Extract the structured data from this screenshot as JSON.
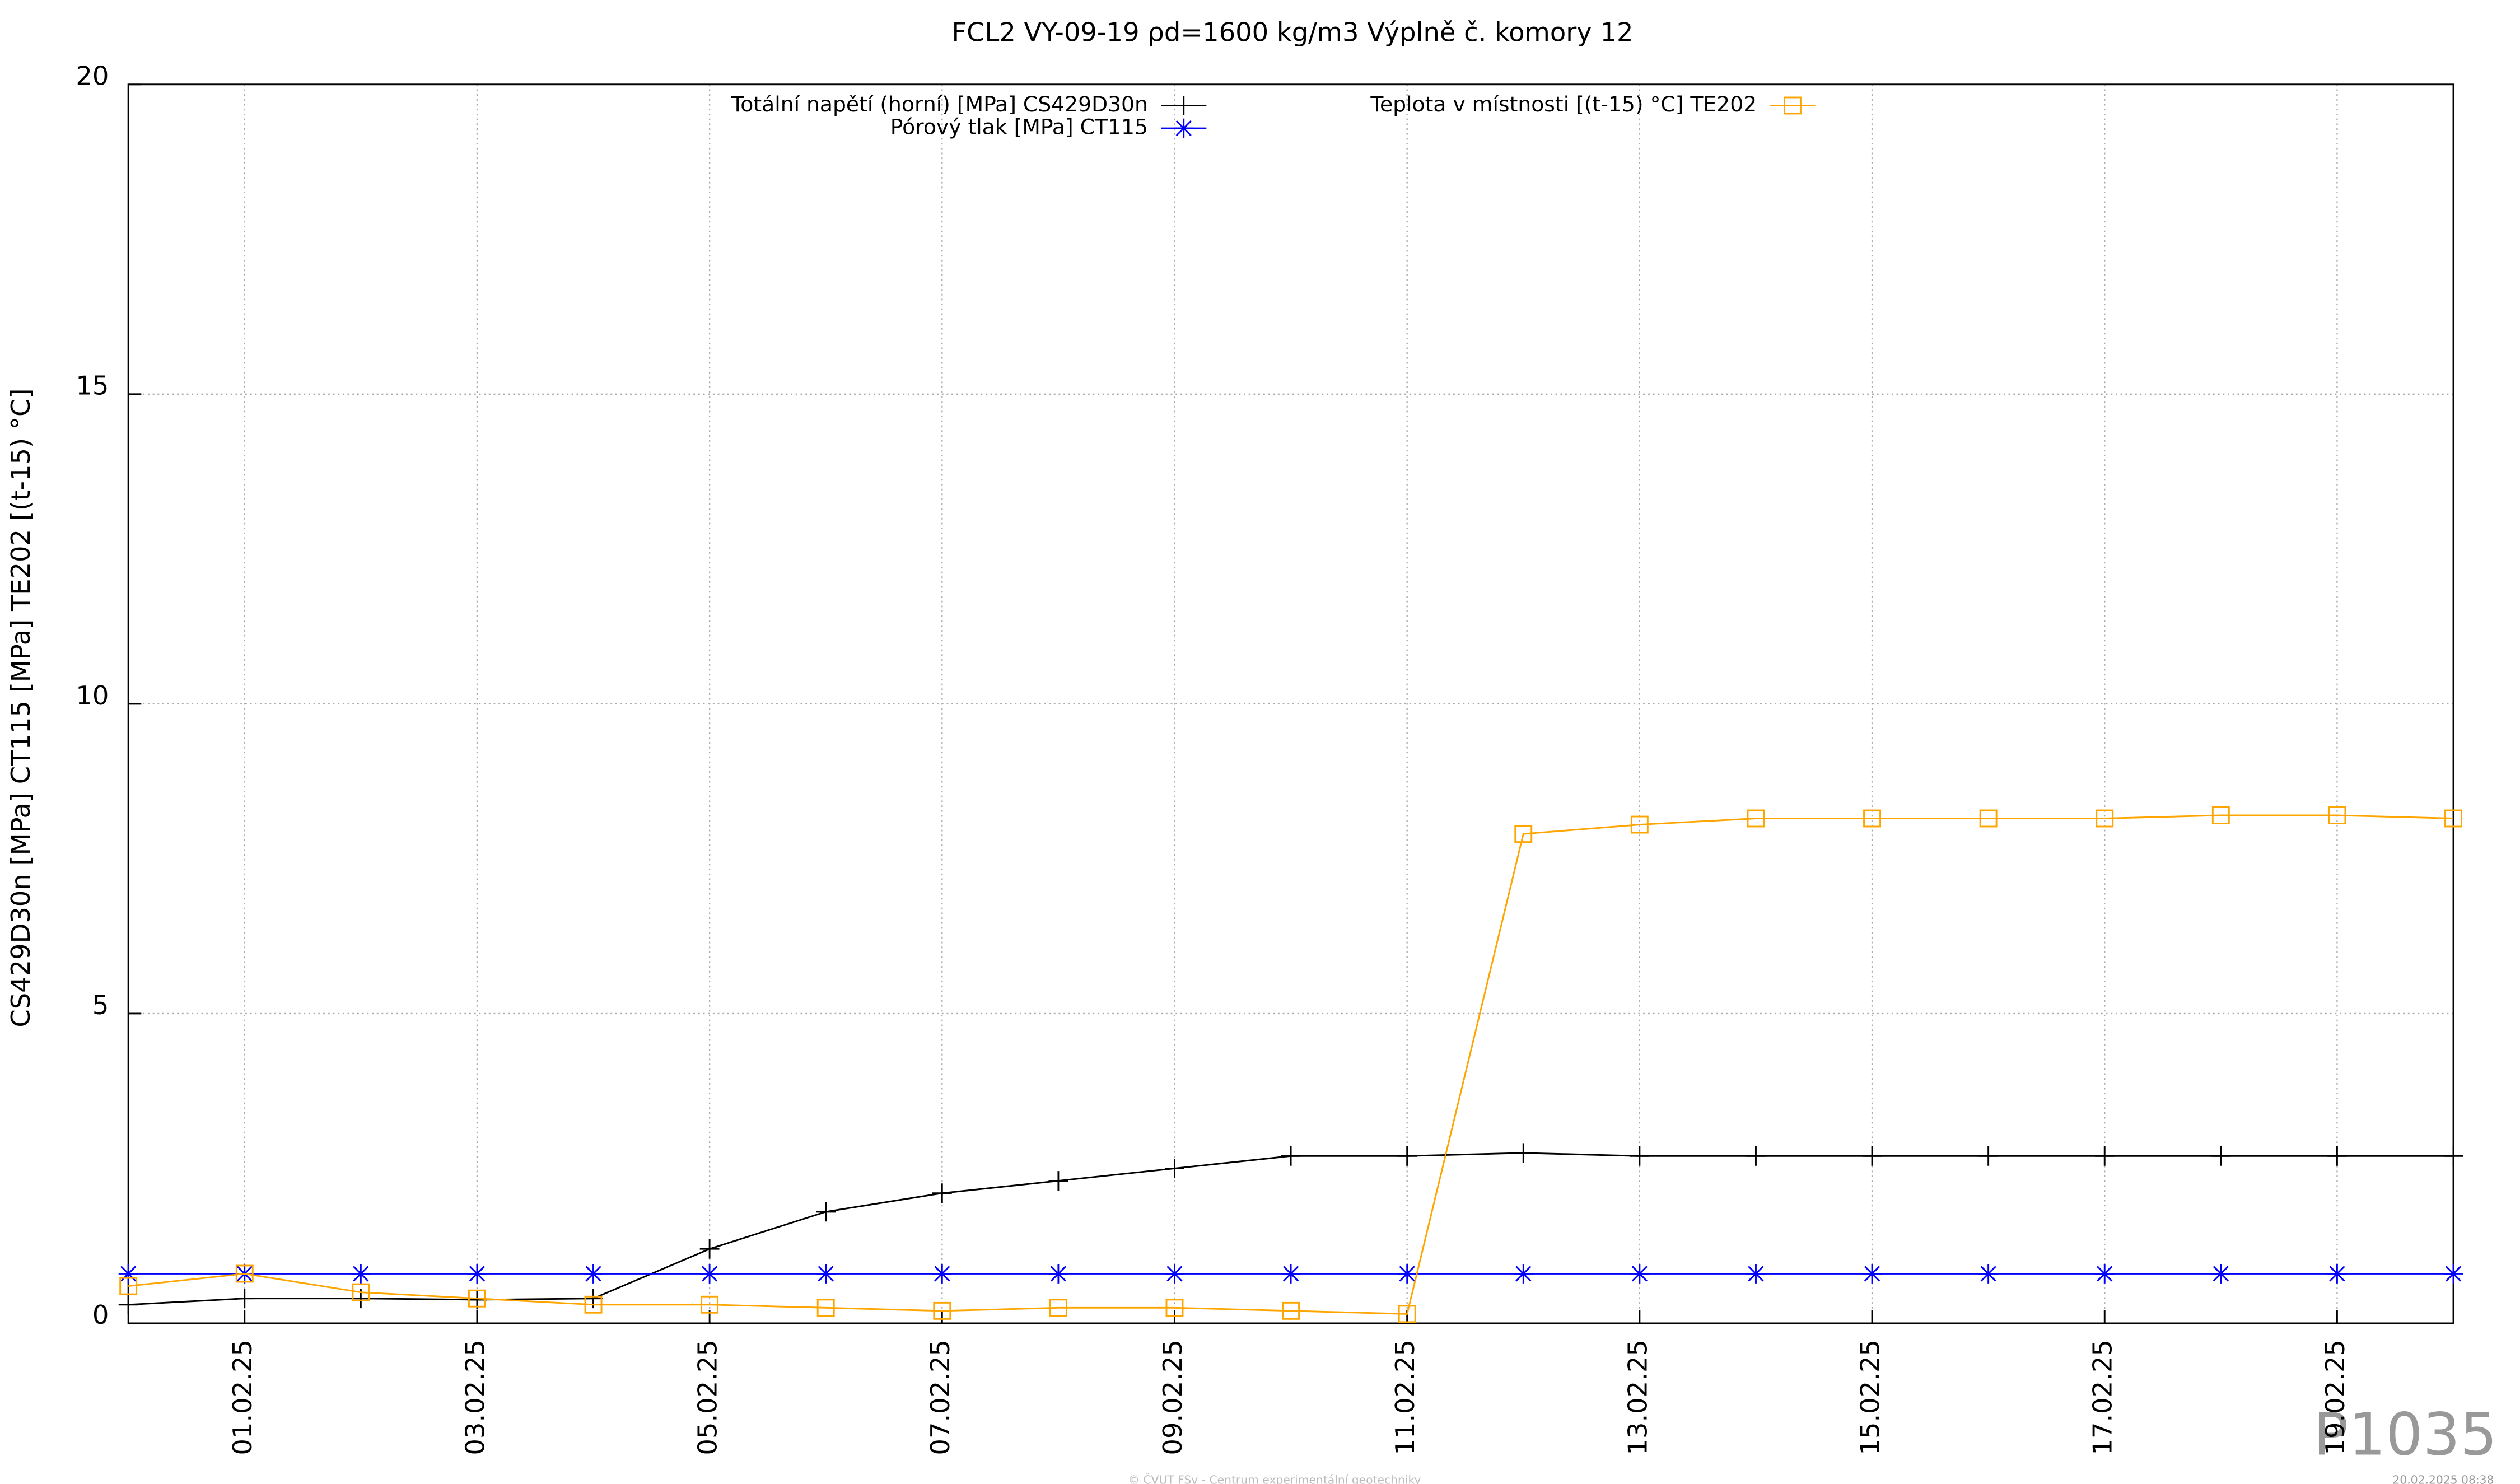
{
  "chart_data": {
    "type": "line",
    "title": "FCL2 VY-09-19 ρd=1600 kg/m3 Výplně č. komory 12",
    "y_label": "CS429D30n [MPa] CT115 [MPa] TE202 [(t-15) °C]",
    "x": [
      "31.01.25",
      "01.02.25",
      "02.02.25",
      "03.02.25",
      "04.02.25",
      "05.02.25",
      "06.02.25",
      "07.02.25",
      "08.02.25",
      "09.02.25",
      "10.02.25",
      "11.02.25",
      "12.02.25",
      "13.02.25",
      "14.02.25",
      "15.02.25",
      "16.02.25",
      "17.02.25",
      "18.02.25",
      "19.02.25",
      "20.02.25"
    ],
    "series": [
      {
        "name": "Totální napětí (horní) [MPa] CS429D30n",
        "color": "#000000",
        "marker": "plus",
        "values": [
          0.3,
          0.4,
          0.4,
          0.38,
          0.4,
          1.2,
          1.8,
          2.1,
          2.3,
          2.5,
          2.7,
          2.7,
          2.75,
          2.7,
          2.7,
          2.7,
          2.7,
          2.7,
          2.7,
          2.7,
          2.7
        ]
      },
      {
        "name": "Pórový tlak [MPa] CT115",
        "color": "#0000ff",
        "marker": "star",
        "values": [
          0.8,
          0.8,
          0.8,
          0.8,
          0.8,
          0.8,
          0.8,
          0.8,
          0.8,
          0.8,
          0.8,
          0.8,
          0.8,
          0.8,
          0.8,
          0.8,
          0.8,
          0.8,
          0.8,
          0.8,
          0.8
        ]
      },
      {
        "name": "Teplota v místnosti [(t-15) °C] TE202",
        "color": "#ffa500",
        "marker": "square",
        "values": [
          0.6,
          0.8,
          0.5,
          0.4,
          0.3,
          0.3,
          0.25,
          0.2,
          0.25,
          0.25,
          0.2,
          0.15,
          7.9,
          8.05,
          8.15,
          8.15,
          8.15,
          8.15,
          8.2,
          8.2,
          8.15
        ]
      }
    ],
    "xlim": [
      "31.01.25",
      "20.02.25"
    ],
    "xticks": [
      "01.02.25",
      "03.02.25",
      "05.02.25",
      "07.02.25",
      "09.02.25",
      "11.02.25",
      "13.02.25",
      "15.02.25",
      "17.02.25",
      "19.02.25"
    ],
    "ylim": [
      0,
      20
    ],
    "yticks": [
      0,
      5,
      10,
      15,
      20
    ],
    "grid": true,
    "watermark": "P1035",
    "footer": "© ČVUT FSv - Centrum experimentální geotechniky",
    "timestamp": "20.02.2025 08:38"
  }
}
